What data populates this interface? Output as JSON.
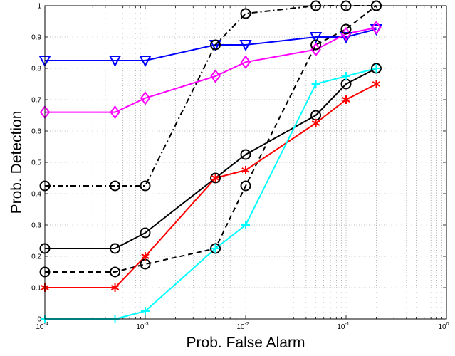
{
  "chart_data": {
    "type": "line",
    "title": "",
    "xlabel": "Prob. False Alarm",
    "ylabel": "Prob. Detection",
    "xscale": "log",
    "xlim": [
      0.0001,
      1
    ],
    "ylim": [
      0,
      1
    ],
    "x_ticks": [
      {
        "base": "10",
        "exp": "-4",
        "value": 0.0001
      },
      {
        "base": "10",
        "exp": "-3",
        "value": 0.001
      },
      {
        "base": "10",
        "exp": "-2",
        "value": 0.01
      },
      {
        "base": "10",
        "exp": "-1",
        "value": 0.1
      },
      {
        "base": "10",
        "exp": "0",
        "value": 1
      }
    ],
    "y_ticks": [
      "0",
      "0.1",
      "0.2",
      "0.3",
      "0.4",
      "0.5",
      "0.6",
      "0.7",
      "0.8",
      "0.9",
      "1"
    ],
    "grid": "dotted, major and minor",
    "legend": "none",
    "series": [
      {
        "color": "#0000ff",
        "marker": "triangle-down",
        "line_style": "solid",
        "x": [
          0.0001,
          0.0005,
          0.001,
          0.005,
          0.01,
          0.05,
          0.1,
          0.2
        ],
        "y": [
          0.825,
          0.825,
          0.825,
          0.875,
          0.875,
          0.9,
          0.9,
          0.925
        ]
      },
      {
        "color": "#ff00ff",
        "marker": "diamond",
        "line_style": "solid",
        "x": [
          0.0001,
          0.0005,
          0.001,
          0.005,
          0.01,
          0.05,
          0.1,
          0.2
        ],
        "y": [
          0.66,
          0.66,
          0.705,
          0.775,
          0.82,
          0.86,
          0.91,
          0.93
        ]
      },
      {
        "color": "#000000",
        "marker": "circle",
        "line_style": "dashdot",
        "x": [
          0.0001,
          0.0005,
          0.001,
          0.005,
          0.01,
          0.05,
          0.1,
          0.2
        ],
        "y": [
          0.425,
          0.425,
          0.425,
          0.875,
          0.975,
          1.0,
          1.0,
          1.0
        ]
      },
      {
        "color": "#000000",
        "marker": "circle",
        "line_style": "solid",
        "x": [
          0.0001,
          0.0005,
          0.001,
          0.005,
          0.01,
          0.05,
          0.1,
          0.2
        ],
        "y": [
          0.225,
          0.225,
          0.275,
          0.45,
          0.525,
          0.65,
          0.75,
          0.8
        ]
      },
      {
        "color": "#000000",
        "marker": "circle",
        "line_style": "dashed",
        "x": [
          0.0001,
          0.0005,
          0.001,
          0.005,
          0.01,
          0.05,
          0.1,
          0.2
        ],
        "y": [
          0.15,
          0.15,
          0.175,
          0.225,
          0.425,
          0.875,
          0.925,
          1.0
        ]
      },
      {
        "color": "#ff0000",
        "marker": "asterisk",
        "line_style": "solid",
        "x": [
          0.0001,
          0.0005,
          0.001,
          0.005,
          0.01,
          0.05,
          0.1,
          0.2
        ],
        "y": [
          0.1,
          0.1,
          0.2,
          0.45,
          0.475,
          0.625,
          0.7,
          0.75
        ]
      },
      {
        "color": "#00ffff",
        "marker": "plus",
        "line_style": "solid",
        "x": [
          0.0001,
          0.0005,
          0.001,
          0.005,
          0.01,
          0.05,
          0.1,
          0.2
        ],
        "y": [
          0.0,
          0.0,
          0.025,
          0.225,
          0.3,
          0.75,
          0.775,
          0.8
        ]
      }
    ]
  }
}
